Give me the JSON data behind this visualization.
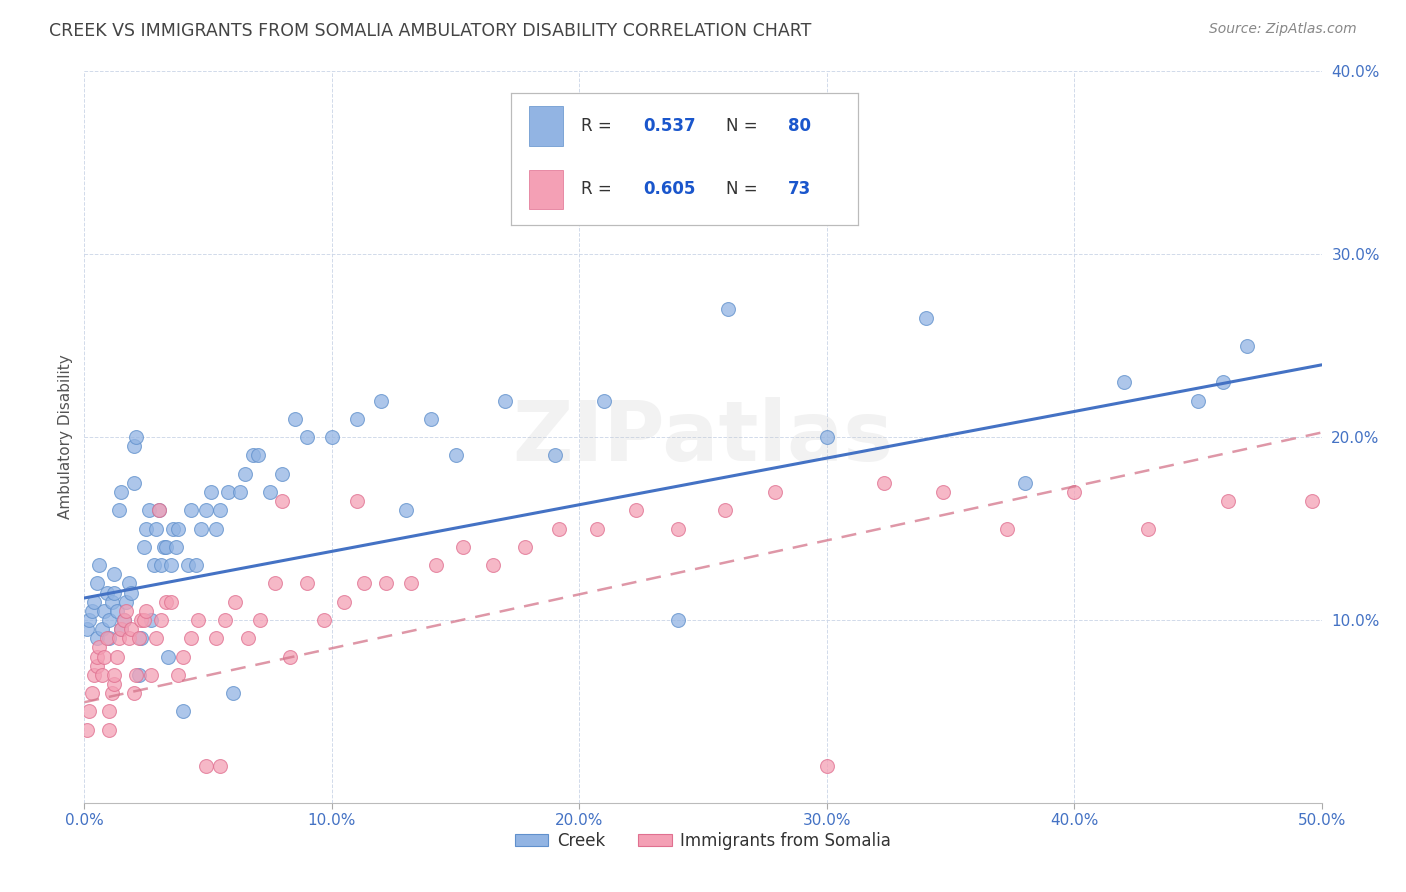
{
  "title": "CREEK VS IMMIGRANTS FROM SOMALIA AMBULATORY DISABILITY CORRELATION CHART",
  "source": "Source: ZipAtlas.com",
  "ylabel": "Ambulatory Disability",
  "xlim": [
    0.0,
    0.5
  ],
  "ylim": [
    0.0,
    0.4
  ],
  "xticks": [
    0.0,
    0.1,
    0.2,
    0.3,
    0.4,
    0.5
  ],
  "yticks": [
    0.0,
    0.1,
    0.2,
    0.3,
    0.4
  ],
  "creek_color": "#92b4e3",
  "creek_edge_color": "#6090cc",
  "somalia_color": "#f4a0b5",
  "somalia_edge_color": "#e07090",
  "creek_line_color": "#4472c4",
  "somalia_line_color": "#d4748a",
  "creek_intercept": 0.112,
  "creek_slope": 0.255,
  "somalia_intercept": 0.055,
  "somalia_slope": 0.295,
  "watermark": "ZIPatlas",
  "background_color": "#ffffff",
  "grid_color": "#ccd6e8",
  "title_color": "#444444",
  "axis_label_color": "#555555",
  "tick_color": "#4472c4",
  "creek_points_x": [
    0.001,
    0.002,
    0.003,
    0.004,
    0.005,
    0.005,
    0.006,
    0.007,
    0.008,
    0.009,
    0.01,
    0.01,
    0.011,
    0.012,
    0.012,
    0.013,
    0.014,
    0.015,
    0.015,
    0.016,
    0.017,
    0.018,
    0.019,
    0.02,
    0.02,
    0.021,
    0.022,
    0.023,
    0.024,
    0.025,
    0.026,
    0.027,
    0.028,
    0.029,
    0.03,
    0.031,
    0.032,
    0.033,
    0.034,
    0.035,
    0.036,
    0.037,
    0.038,
    0.04,
    0.042,
    0.043,
    0.045,
    0.047,
    0.049,
    0.051,
    0.053,
    0.055,
    0.058,
    0.06,
    0.063,
    0.065,
    0.068,
    0.07,
    0.075,
    0.08,
    0.085,
    0.09,
    0.1,
    0.11,
    0.12,
    0.13,
    0.14,
    0.15,
    0.17,
    0.19,
    0.21,
    0.24,
    0.26,
    0.3,
    0.34,
    0.38,
    0.42,
    0.45,
    0.46,
    0.47
  ],
  "creek_points_y": [
    0.095,
    0.1,
    0.105,
    0.11,
    0.09,
    0.12,
    0.13,
    0.095,
    0.105,
    0.115,
    0.09,
    0.1,
    0.11,
    0.115,
    0.125,
    0.105,
    0.16,
    0.17,
    0.095,
    0.1,
    0.11,
    0.12,
    0.115,
    0.175,
    0.195,
    0.2,
    0.07,
    0.09,
    0.14,
    0.15,
    0.16,
    0.1,
    0.13,
    0.15,
    0.16,
    0.13,
    0.14,
    0.14,
    0.08,
    0.13,
    0.15,
    0.14,
    0.15,
    0.05,
    0.13,
    0.16,
    0.13,
    0.15,
    0.16,
    0.17,
    0.15,
    0.16,
    0.17,
    0.06,
    0.17,
    0.18,
    0.19,
    0.19,
    0.17,
    0.18,
    0.21,
    0.2,
    0.2,
    0.21,
    0.22,
    0.16,
    0.21,
    0.19,
    0.22,
    0.19,
    0.22,
    0.1,
    0.27,
    0.2,
    0.265,
    0.175,
    0.23,
    0.22,
    0.23,
    0.25
  ],
  "somalia_points_x": [
    0.001,
    0.002,
    0.003,
    0.004,
    0.005,
    0.005,
    0.006,
    0.007,
    0.008,
    0.009,
    0.01,
    0.01,
    0.011,
    0.012,
    0.012,
    0.013,
    0.014,
    0.015,
    0.016,
    0.017,
    0.018,
    0.019,
    0.02,
    0.021,
    0.022,
    0.023,
    0.024,
    0.025,
    0.027,
    0.029,
    0.031,
    0.033,
    0.035,
    0.038,
    0.04,
    0.043,
    0.046,
    0.049,
    0.053,
    0.057,
    0.061,
    0.066,
    0.071,
    0.077,
    0.083,
    0.09,
    0.097,
    0.105,
    0.113,
    0.122,
    0.132,
    0.142,
    0.153,
    0.165,
    0.178,
    0.192,
    0.207,
    0.223,
    0.24,
    0.259,
    0.279,
    0.3,
    0.323,
    0.347,
    0.373,
    0.4,
    0.43,
    0.462,
    0.496,
    0.03,
    0.055,
    0.08,
    0.11
  ],
  "somalia_points_y": [
    0.04,
    0.05,
    0.06,
    0.07,
    0.075,
    0.08,
    0.085,
    0.07,
    0.08,
    0.09,
    0.04,
    0.05,
    0.06,
    0.065,
    0.07,
    0.08,
    0.09,
    0.095,
    0.1,
    0.105,
    0.09,
    0.095,
    0.06,
    0.07,
    0.09,
    0.1,
    0.1,
    0.105,
    0.07,
    0.09,
    0.1,
    0.11,
    0.11,
    0.07,
    0.08,
    0.09,
    0.1,
    0.02,
    0.09,
    0.1,
    0.11,
    0.09,
    0.1,
    0.12,
    0.08,
    0.12,
    0.1,
    0.11,
    0.12,
    0.12,
    0.12,
    0.13,
    0.14,
    0.13,
    0.14,
    0.15,
    0.15,
    0.16,
    0.15,
    0.16,
    0.17,
    0.02,
    0.175,
    0.17,
    0.15,
    0.17,
    0.15,
    0.165,
    0.165,
    0.16,
    0.02,
    0.165,
    0.165
  ]
}
